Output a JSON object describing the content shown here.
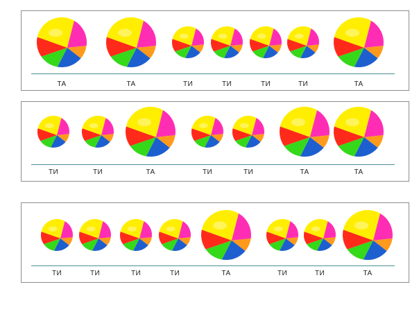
{
  "colors": {
    "yellow": "#ffee00",
    "magenta": "#ff2db4",
    "orange": "#ff9a1c",
    "blue": "#1e5fcf",
    "green": "#36d81a",
    "red": "#ff2a1a",
    "line": "#4a8f95",
    "border": "#8c8c8c"
  },
  "rows": [
    {
      "beats": [
        {
          "s": "ТА"
        },
        {
          "s": "ТА"
        },
        {
          "s": "ТИ"
        },
        {
          "s": "ТИ"
        },
        {
          "s": "ТИ"
        },
        {
          "s": "ТИ"
        },
        {
          "s": "ТА"
        }
      ]
    },
    {
      "beats": [
        {
          "s": "ТИ"
        },
        {
          "s": "ТИ"
        },
        {
          "s": "ТА"
        },
        {
          "s": "ТИ"
        },
        {
          "s": "ТИ"
        },
        {
          "s": "ТА"
        },
        {
          "s": "ТА"
        }
      ]
    },
    {
      "beats": [
        {
          "s": "ТИ"
        },
        {
          "s": "ТИ"
        },
        {
          "s": "ТИ"
        },
        {
          "s": "ТИ"
        },
        {
          "s": "ТА"
        },
        {
          "s": "ТИ"
        },
        {
          "s": "ТИ"
        },
        {
          "s": "ТА"
        }
      ]
    }
  ]
}
